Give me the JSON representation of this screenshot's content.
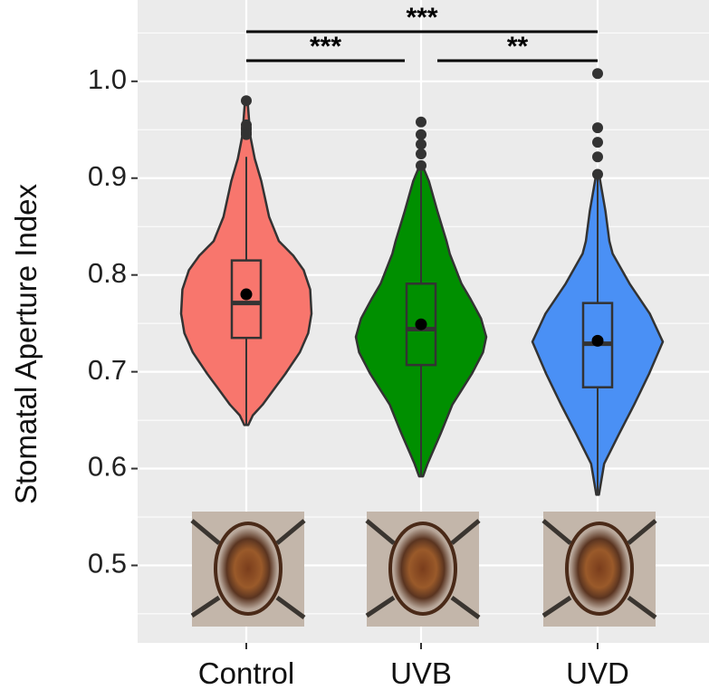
{
  "chart_data": {
    "type": "violin",
    "title": "",
    "xlabel": "",
    "ylabel": "Stomatal Aperture Index",
    "ylim": [
      0.42,
      1.084
    ],
    "yticks": [
      "0.5",
      "0.6",
      "0.7",
      "0.8",
      "0.9",
      "1.0"
    ],
    "grid": true,
    "categories": [
      "Control",
      "UVB",
      "UVD"
    ],
    "colors": {
      "Control": "#F8766D",
      "UVB": "#008F00",
      "UVD": "#4A90F5",
      "panel": "#EBEBEB",
      "grid": "#FFFFFF",
      "outline": "#333333"
    },
    "series": [
      {
        "category": "Control",
        "box": {
          "q1": 0.735,
          "median": 0.771,
          "q3": 0.815,
          "whisker_low": 0.645,
          "whisker_high": 0.922
        },
        "mean": 0.78,
        "outliers": [
          0.98,
          0.955,
          0.952,
          0.95,
          0.947,
          0.945
        ],
        "density": [
          [
            0.645,
            0.03
          ],
          [
            0.655,
            0.1
          ],
          [
            0.666,
            0.25
          ],
          [
            0.698,
            0.6
          ],
          [
            0.72,
            0.82
          ],
          [
            0.74,
            0.95
          ],
          [
            0.76,
            1.0
          ],
          [
            0.785,
            0.98
          ],
          [
            0.805,
            0.88
          ],
          [
            0.82,
            0.72
          ],
          [
            0.835,
            0.5
          ],
          [
            0.86,
            0.35
          ],
          [
            0.897,
            0.23
          ],
          [
            0.92,
            0.13
          ],
          [
            0.944,
            0.06
          ],
          [
            0.98,
            0.02
          ]
        ]
      },
      {
        "category": "UVB",
        "box": {
          "q1": 0.707,
          "median": 0.744,
          "q3": 0.791,
          "whisker_low": 0.592,
          "whisker_high": 0.907
        },
        "mean": 0.749,
        "outliers": [
          0.958,
          0.945,
          0.935,
          0.925,
          0.913
        ],
        "density": [
          [
            0.592,
            0.03
          ],
          [
            0.605,
            0.1
          ],
          [
            0.636,
            0.3
          ],
          [
            0.666,
            0.48
          ],
          [
            0.698,
            0.78
          ],
          [
            0.72,
            0.95
          ],
          [
            0.736,
            1.0
          ],
          [
            0.755,
            0.92
          ],
          [
            0.775,
            0.76
          ],
          [
            0.791,
            0.62
          ],
          [
            0.822,
            0.44
          ],
          [
            0.835,
            0.39
          ],
          [
            0.866,
            0.25
          ],
          [
            0.897,
            0.12
          ],
          [
            0.91,
            0.04
          ]
        ]
      },
      {
        "category": "UVD",
        "box": {
          "q1": 0.684,
          "median": 0.729,
          "q3": 0.771,
          "whisker_low": 0.573,
          "whisker_high": 0.904
        },
        "mean": 0.732,
        "outliers": [
          1.008,
          0.952,
          0.937,
          0.922,
          0.904
        ],
        "density": [
          [
            0.573,
            0.02
          ],
          [
            0.585,
            0.05
          ],
          [
            0.605,
            0.1
          ],
          [
            0.636,
            0.33
          ],
          [
            0.666,
            0.56
          ],
          [
            0.698,
            0.79
          ],
          [
            0.731,
            1.0
          ],
          [
            0.76,
            0.8
          ],
          [
            0.791,
            0.49
          ],
          [
            0.822,
            0.23
          ],
          [
            0.835,
            0.18
          ],
          [
            0.866,
            0.12
          ],
          [
            0.897,
            0.04
          ],
          [
            0.905,
            0.02
          ]
        ]
      }
    ],
    "significance": [
      {
        "from": "Control",
        "to": "UVD",
        "label": "***"
      },
      {
        "from": "Control",
        "to": "UVB",
        "label": "***"
      },
      {
        "from": "UVB",
        "to": "UVD",
        "label": "**"
      }
    ],
    "inset_images": [
      "stomata-photo-control",
      "stomata-photo-uvb",
      "stomata-photo-uvd"
    ]
  }
}
